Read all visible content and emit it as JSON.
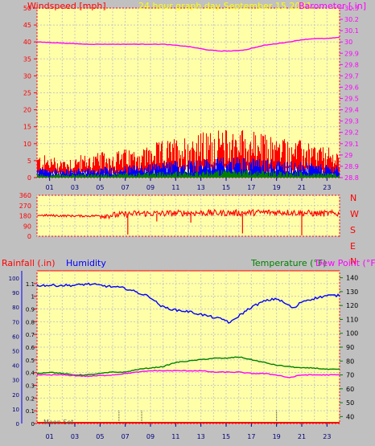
{
  "header": {
    "wind_label": "Windspeed [mph]",
    "title": "24 hour graph day   September 15 2021",
    "baro_label": "Barometer [.in]"
  },
  "footer_header": {
    "rain_label": "Rainfall (.in)",
    "humidity_label": "Humidity",
    "temp_label": "Temperature (°F)",
    "dew_label": "Dew Point (°F)"
  },
  "moon_label": "Moon Set",
  "colors": {
    "background": "#c0c0c0",
    "plot_bg": "#ffffa8",
    "grid": "#c8c8c8",
    "windspeed": "#ff0000",
    "wind_avg": "#0000ff",
    "wind_low": "#008000",
    "barometer": "#ff00ff",
    "direction": "#ff0000",
    "humidity": "#0000ff",
    "temperature": "#008000",
    "dew_point": "#ff00ff",
    "rain": "#ff0000",
    "title": "#ffff00",
    "axis_label": "#ff0000"
  },
  "chart_data": [
    {
      "type": "area",
      "x_ticks": [
        "01",
        "03",
        "05",
        "07",
        "09",
        "11",
        "13",
        "15",
        "17",
        "19",
        "21",
        "23"
      ],
      "y_left": {
        "ticks": [
          "0",
          "5",
          "10",
          "15",
          "20",
          "25",
          "30",
          "35",
          "40",
          "45",
          "50"
        ],
        "ylim": [
          0,
          50
        ]
      },
      "y_right": {
        "ticks": [
          "28.8",
          "28.9",
          "29",
          "29.1",
          "29.2",
          "29.3",
          "29.4",
          "29.5",
          "29.6",
          "29.7",
          "29.8",
          "29.9",
          "30",
          "30.1",
          "30.2",
          "30.3"
        ],
        "ylim": [
          28.8,
          30.3
        ]
      },
      "barometer": {
        "x": [
          0,
          2,
          4,
          6,
          8,
          10,
          12,
          13.5,
          14.5,
          15.5,
          16.5,
          18,
          20,
          21,
          22,
          23,
          24
        ],
        "y": [
          30.0,
          29.99,
          29.98,
          29.98,
          29.98,
          29.98,
          29.96,
          29.93,
          29.92,
          29.92,
          29.93,
          29.97,
          30.0,
          30.02,
          30.03,
          30.03,
          30.04
        ]
      },
      "wind_gust_envelope": {
        "x": [
          0,
          2,
          4,
          6,
          8,
          10,
          12,
          14,
          16,
          18,
          20,
          22,
          24
        ],
        "y": [
          7,
          6,
          7,
          8,
          9,
          11,
          13,
          14,
          15,
          13,
          12,
          10,
          8
        ]
      }
    },
    {
      "type": "scatter",
      "y_ticks": [
        "0",
        "90",
        "180",
        "270",
        "360"
      ],
      "ylim": [
        0,
        360
      ],
      "direction_labels": [
        "N",
        "W",
        "S",
        "E",
        "N"
      ],
      "x": [
        0,
        2,
        4,
        6,
        8,
        10,
        12,
        14,
        16,
        18,
        20,
        22,
        24
      ],
      "y": [
        185,
        180,
        178,
        185,
        200,
        200,
        205,
        205,
        205,
        210,
        210,
        200,
        200
      ]
    },
    {
      "type": "line",
      "x_ticks": [
        "01",
        "03",
        "05",
        "07",
        "09",
        "11",
        "13",
        "15",
        "17",
        "19",
        "21",
        "23"
      ],
      "y_left_rain": {
        "ticks": [
          "0",
          "0.1",
          "0.2",
          "0.3",
          "0.4",
          "0.5",
          "0.6",
          "0.7",
          "0.8",
          "0.9",
          "1",
          "1.1"
        ],
        "ylim": [
          0,
          1.2
        ]
      },
      "y_left_humidity": {
        "ticks": [
          "0",
          "10",
          "20",
          "30",
          "40",
          "50",
          "60",
          "70",
          "80",
          "90",
          "100"
        ],
        "ylim": [
          0,
          105
        ]
      },
      "y_right": {
        "ticks": [
          "40",
          "50",
          "60",
          "70",
          "80",
          "90",
          "100",
          "110",
          "120",
          "130",
          "140"
        ],
        "ylim": [
          35,
          145
        ]
      },
      "humidity": {
        "x": [
          0,
          2,
          3,
          4,
          5,
          6,
          7,
          8,
          9,
          9.5,
          10,
          11,
          12,
          13,
          14,
          15,
          15.3,
          16,
          17,
          18,
          19,
          20,
          20.4,
          21,
          22,
          23,
          24
        ],
        "y": [
          95,
          95,
          95,
          96,
          95,
          94,
          93,
          90,
          87,
          83,
          80,
          78,
          77,
          75,
          73,
          71,
          69,
          74,
          80,
          84,
          86,
          81,
          79,
          84,
          86,
          88,
          88
        ]
      },
      "temperature": {
        "x": [
          0,
          1,
          2,
          3,
          4,
          5,
          6,
          7,
          8,
          9,
          10,
          11,
          12,
          13,
          14,
          15,
          16,
          17,
          18,
          19,
          20,
          21,
          22,
          23,
          24
        ],
        "y": [
          71,
          72,
          71,
          70,
          70,
          71,
          72,
          72,
          74,
          75,
          76,
          79,
          80,
          81,
          82,
          82,
          83,
          81,
          79,
          77,
          76,
          75,
          75,
          74,
          74
        ]
      },
      "dew_point": {
        "x": [
          0,
          2,
          4,
          6,
          8,
          9,
          10,
          11,
          12,
          13,
          14,
          15,
          16,
          17,
          18,
          19,
          20,
          21,
          22,
          23,
          24
        ],
        "y": [
          70,
          70,
          69,
          70,
          72,
          73,
          73,
          73,
          73,
          73,
          72,
          72,
          72,
          71,
          71,
          70,
          68,
          70,
          70,
          70,
          70
        ]
      },
      "rain": {
        "x": [
          0,
          24
        ],
        "y": [
          0,
          0
        ]
      },
      "moon_set_hour": 19,
      "markers_hours": [
        6.5,
        8.3,
        19
      ]
    }
  ]
}
